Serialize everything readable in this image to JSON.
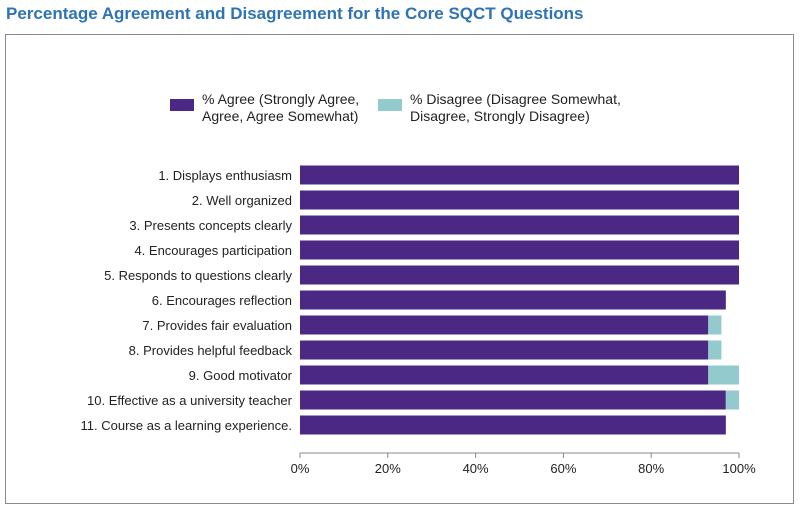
{
  "title": "Percentage Agreement and Disagreement for the Core SQCT Questions",
  "legend": {
    "agree_line1": "% Agree (Strongly Agree,",
    "agree_line2": "Agree, Agree Somewhat)",
    "disagree_line1": "% Disagree (Disagree Somewhat,",
    "disagree_line2": "Disagree, Strongly Disagree)"
  },
  "colors": {
    "title": "#2e74b5",
    "agree": "#4b2884",
    "disagree": "#93cacd",
    "axis": "#888888"
  },
  "chart_data": {
    "type": "bar",
    "orientation": "horizontal",
    "stacked": true,
    "title": "Percentage Agreement and Disagreement for the Core SQCT Questions",
    "categories": [
      "1. Displays enthusiasm",
      "2. Well organized",
      "3. Presents concepts clearly",
      "4. Encourages participation",
      "5. Responds to questions clearly",
      "6. Encourages reflection",
      "7. Provides fair evaluation",
      "8. Provides helpful feedback",
      "9. Good motivator",
      "10. Effective as a university teacher",
      "11. Course as a learning experience."
    ],
    "series": [
      {
        "name": "% Agree (Strongly Agree, Agree, Agree Somewhat)",
        "values": [
          100,
          100,
          100,
          100,
          100,
          97,
          93,
          93,
          93,
          97,
          97
        ]
      },
      {
        "name": "% Disagree (Disagree Somewhat, Disagree, Strongly Disagree)",
        "values": [
          0,
          0,
          0,
          0,
          0,
          0,
          3,
          3,
          7,
          3,
          0
        ]
      }
    ],
    "xlim": [
      0,
      100
    ],
    "xticks": [
      "0%",
      "20%",
      "40%",
      "60%",
      "80%",
      "100%"
    ],
    "xlabel": "",
    "ylabel": "",
    "grid": false,
    "legend_position": "top"
  }
}
